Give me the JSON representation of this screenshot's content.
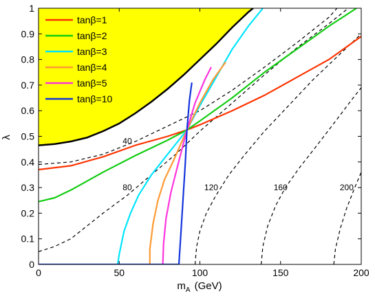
{
  "chart_data": {
    "type": "line",
    "xlabel_main": "m",
    "xlabel_sub": "A",
    "xlabel_unit": "(GeV)",
    "ylabel": "λ",
    "xlim": [
      0,
      200
    ],
    "ylim": [
      0,
      1
    ],
    "xticks": [
      "0",
      "50",
      "100",
      "150",
      "200"
    ],
    "yticks": [
      "0",
      "0.1",
      "0.2",
      "0.3",
      "0.4",
      "0.5",
      "0.6",
      "0.7",
      "0.8",
      "0.9",
      "1"
    ],
    "legend_position": "top-left",
    "excluded_region": {
      "fill": "#ffff00",
      "boundary": [
        [
          0,
          0.465
        ],
        [
          10,
          0.47
        ],
        [
          20,
          0.48
        ],
        [
          30,
          0.495
        ],
        [
          40,
          0.52
        ],
        [
          50,
          0.55
        ],
        [
          60,
          0.59
        ],
        [
          70,
          0.635
        ],
        [
          80,
          0.685
        ],
        [
          90,
          0.74
        ],
        [
          100,
          0.8
        ],
        [
          110,
          0.86
        ],
        [
          120,
          0.925
        ],
        [
          130,
          0.985
        ],
        [
          133,
          1.0
        ]
      ]
    },
    "series": [
      {
        "name": "tanβ=1",
        "color": "#ff3300",
        "points": [
          [
            0,
            0.37
          ],
          [
            20,
            0.385
          ],
          [
            40,
            0.42
          ],
          [
            60,
            0.465
          ],
          [
            80,
            0.5
          ],
          [
            92,
            0.525
          ],
          [
            100,
            0.545
          ],
          [
            120,
            0.6
          ],
          [
            140,
            0.66
          ],
          [
            160,
            0.73
          ],
          [
            180,
            0.8
          ],
          [
            200,
            0.89
          ]
        ]
      },
      {
        "name": "tanβ=2",
        "color": "#11cc11",
        "points": [
          [
            0,
            0.245
          ],
          [
            10,
            0.26
          ],
          [
            20,
            0.29
          ],
          [
            40,
            0.36
          ],
          [
            60,
            0.425
          ],
          [
            80,
            0.485
          ],
          [
            92,
            0.525
          ],
          [
            100,
            0.56
          ],
          [
            120,
            0.65
          ],
          [
            140,
            0.75
          ],
          [
            160,
            0.84
          ],
          [
            180,
            0.93
          ],
          [
            197,
            1.0
          ]
        ]
      },
      {
        "name": "tanβ=3",
        "color": "#00e5ff",
        "points": [
          [
            49,
            0.0
          ],
          [
            50,
            0.04
          ],
          [
            53,
            0.13
          ],
          [
            57,
            0.2
          ],
          [
            62,
            0.27
          ],
          [
            70,
            0.35
          ],
          [
            80,
            0.43
          ],
          [
            92,
            0.525
          ],
          [
            100,
            0.62
          ],
          [
            110,
            0.73
          ],
          [
            120,
            0.84
          ],
          [
            130,
            0.93
          ],
          [
            139,
            1.0
          ]
        ]
      },
      {
        "name": "tanβ=4",
        "color": "#ff9933",
        "points": [
          [
            69,
            0.0
          ],
          [
            69,
            0.06
          ],
          [
            71,
            0.16
          ],
          [
            74,
            0.25
          ],
          [
            78,
            0.33
          ],
          [
            84,
            0.41
          ],
          [
            92,
            0.525
          ],
          [
            100,
            0.63
          ],
          [
            108,
            0.72
          ],
          [
            116,
            0.79
          ]
        ]
      },
      {
        "name": "tanβ=5",
        "color": "#ff33dd",
        "points": [
          [
            77,
            0.0
          ],
          [
            77.5,
            0.08
          ],
          [
            79,
            0.18
          ],
          [
            82,
            0.28
          ],
          [
            86,
            0.38
          ],
          [
            92,
            0.525
          ],
          [
            97,
            0.63
          ],
          [
            103,
            0.72
          ],
          [
            107,
            0.77
          ]
        ]
      },
      {
        "name": "tanβ=10",
        "color": "#1133dd",
        "points": [
          [
            0,
            0.0
          ],
          [
            87,
            0.0
          ],
          [
            88,
            0.1
          ],
          [
            89.5,
            0.25
          ],
          [
            91,
            0.4
          ],
          [
            92,
            0.525
          ],
          [
            93.5,
            0.64
          ],
          [
            95,
            0.71
          ]
        ]
      }
    ],
    "contours": [
      {
        "label": "40",
        "points": [
          [
            0,
            0.39
          ],
          [
            20,
            0.4
          ],
          [
            40,
            0.43
          ],
          [
            60,
            0.48
          ],
          [
            80,
            0.54
          ],
          [
            100,
            0.6
          ],
          [
            120,
            0.68
          ],
          [
            140,
            0.77
          ],
          [
            160,
            0.865
          ],
          [
            180,
            0.965
          ],
          [
            185,
            1.0
          ]
        ],
        "label_at": [
          55,
          0.47
        ]
      },
      {
        "label": "80",
        "points": [
          [
            0,
            0.05
          ],
          [
            10,
            0.07
          ],
          [
            20,
            0.1
          ],
          [
            30,
            0.15
          ],
          [
            40,
            0.2
          ],
          [
            55,
            0.27
          ],
          [
            70,
            0.35
          ],
          [
            85,
            0.43
          ],
          [
            100,
            0.52
          ],
          [
            120,
            0.63
          ],
          [
            140,
            0.74
          ],
          [
            160,
            0.845
          ],
          [
            180,
            0.94
          ],
          [
            192,
            1.0
          ]
        ],
        "label_at": [
          55,
          0.29
        ]
      },
      {
        "label": "120",
        "points": [
          [
            97,
            0.0
          ],
          [
            98,
            0.07
          ],
          [
            100,
            0.13
          ],
          [
            104,
            0.2
          ],
          [
            110,
            0.27
          ],
          [
            118,
            0.35
          ],
          [
            128,
            0.43
          ],
          [
            140,
            0.52
          ],
          [
            155,
            0.62
          ],
          [
            170,
            0.72
          ],
          [
            190,
            0.84
          ],
          [
            200,
            0.9
          ]
        ],
        "label_at": [
          107,
          0.29
        ]
      },
      {
        "label": "160",
        "points": [
          [
            138,
            0.0
          ],
          [
            139,
            0.07
          ],
          [
            142,
            0.15
          ],
          [
            147,
            0.23
          ],
          [
            153,
            0.3
          ],
          [
            162,
            0.38
          ],
          [
            172,
            0.46
          ],
          [
            183,
            0.55
          ],
          [
            195,
            0.65
          ],
          [
            200,
            0.69
          ]
        ],
        "label_at": [
          150,
          0.29
        ]
      },
      {
        "label": "200",
        "points": [
          [
            183,
            0.0
          ],
          [
            184,
            0.06
          ],
          [
            187,
            0.14
          ],
          [
            191,
            0.22
          ],
          [
            196,
            0.3
          ],
          [
            200,
            0.36
          ]
        ],
        "label_at": [
          191,
          0.29
        ]
      }
    ]
  }
}
